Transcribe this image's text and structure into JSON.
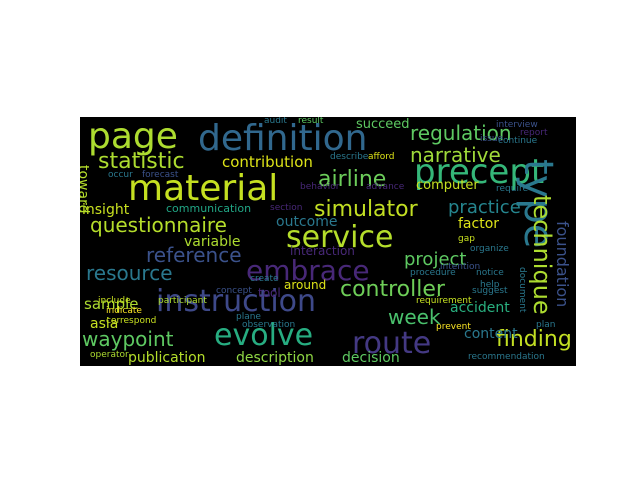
{
  "cloud": {
    "background": "#000000",
    "colormap": "viridis",
    "words": [
      "page",
      "definition",
      "regulation",
      "narrative",
      "precept",
      "statistic",
      "contribution",
      "material",
      "airline",
      "type",
      "simulator",
      "practice",
      "insight",
      "questionnaire",
      "communication",
      "service",
      "technique",
      "variable",
      "reference",
      "factor",
      "embrace",
      "project",
      "resource",
      "foundation",
      "instruction",
      "controller",
      "week",
      "accident",
      "sample",
      "asia",
      "waypoint",
      "evolve",
      "route",
      "finding",
      "publication",
      "description",
      "computer",
      "succeed",
      "decision",
      "content",
      "outcome",
      "interaction",
      "around",
      "toward",
      "tool",
      "section",
      "concept",
      "include",
      "correspond",
      "indicate",
      "participant",
      "create",
      "audit",
      "result",
      "issue",
      "continue",
      "describe",
      "afford",
      "behavior",
      "advance",
      "require",
      "gap",
      "organize",
      "requirement",
      "prevent",
      "recommendation",
      "operator",
      "plane",
      "forecast",
      "occur",
      "notice",
      "observation",
      "document",
      "help",
      "plan",
      "intention",
      "procedure",
      "interview",
      "suggest",
      "report"
    ]
  }
}
